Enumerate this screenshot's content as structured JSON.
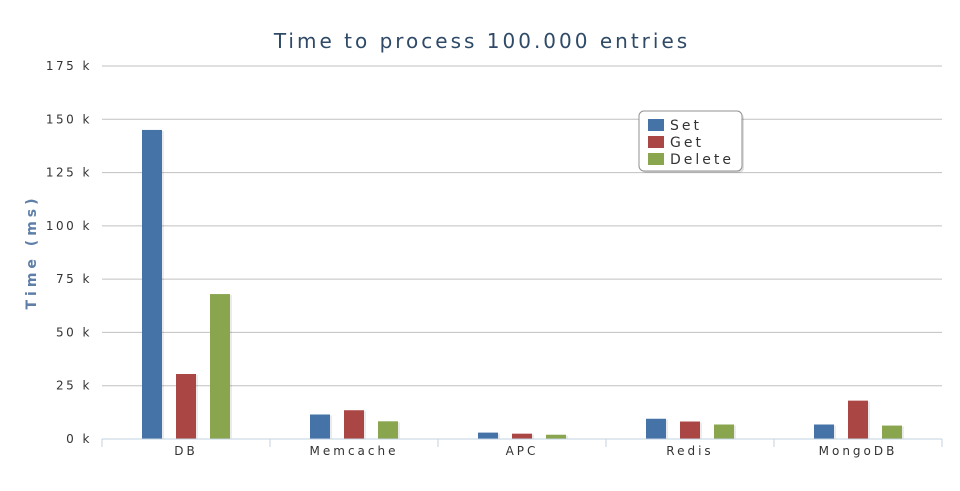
{
  "chart_data": {
    "type": "bar",
    "title": "Time to process 100.000 entries",
    "xlabel": "",
    "ylabel": "Time (ms)",
    "ylim": [
      0,
      175000
    ],
    "yticks": [
      "0 k",
      "25 k",
      "50 k",
      "75 k",
      "100 k",
      "125 k",
      "150 k",
      "175 k"
    ],
    "categories": [
      "DB",
      "Memcache",
      "APC",
      "Redis",
      "MongoDB"
    ],
    "series": [
      {
        "name": "Set",
        "color": "#4572a7",
        "values": [
          145000,
          11500,
          3000,
          9500,
          6800
        ]
      },
      {
        "name": "Get",
        "color": "#aa4643",
        "values": [
          30500,
          13500,
          2500,
          8200,
          18000
        ]
      },
      {
        "name": "Delete",
        "color": "#89a54e",
        "values": [
          68000,
          8300,
          2000,
          6800,
          6300
        ]
      }
    ],
    "grid": true,
    "legend_position": "top-right"
  }
}
